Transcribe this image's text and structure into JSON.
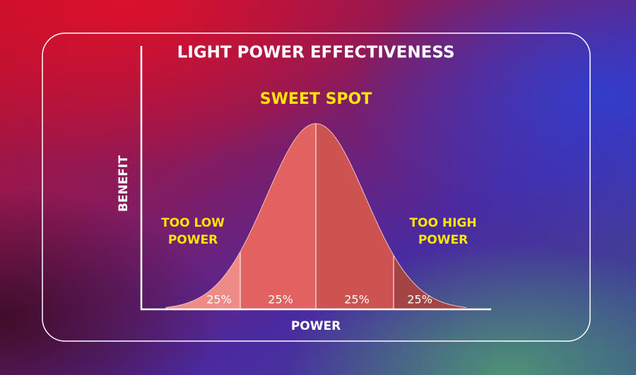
{
  "title": "LIGHT POWER EFFECTIVENESS",
  "y_axis_label": "BENEFIT",
  "x_axis_label": "POWER",
  "annotations": {
    "center": "SWEET SPOT",
    "left": [
      "TOO LOW",
      "POWER"
    ],
    "right": [
      "TOO HIGH",
      "POWER"
    ]
  },
  "segments": [
    "25%",
    "25%",
    "25%",
    "25%"
  ]
}
